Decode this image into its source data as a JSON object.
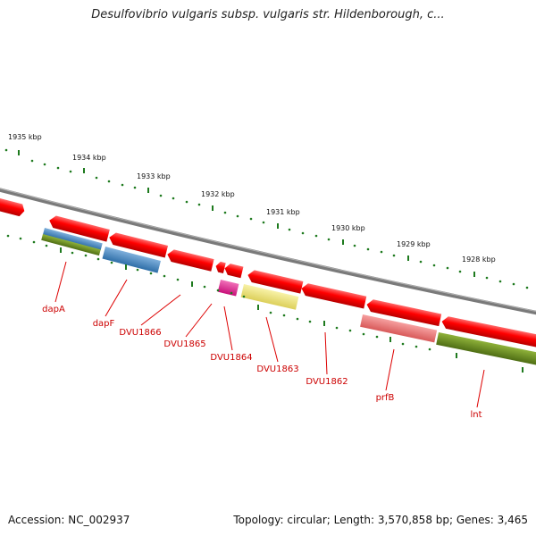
{
  "title": "Desulfovibrio vulgaris subsp. vulgaris str. Hildenborough, c...",
  "footer": {
    "accession": "Accession: NC_002937",
    "topology": "Topology: circular; Length: 3,570,858 bp; Genes: 3,465"
  },
  "ruler": {
    "labels": [
      "1935 kbp",
      "1934 kbp",
      "1933 kbp",
      "1932 kbp",
      "1931 kbp",
      "1930 kbp",
      "1929 kbp",
      "1928 kbp"
    ],
    "tick_color": "#1e7a1e"
  },
  "genes": [
    {
      "label": "dapA"
    },
    {
      "label": "dapF"
    },
    {
      "label": "DVU1866"
    },
    {
      "label": "DVU1865"
    },
    {
      "label": "DVU1864"
    },
    {
      "label": "DVU1863"
    },
    {
      "label": "DVU1862"
    },
    {
      "label": "prfB"
    },
    {
      "label": "lnt"
    }
  ],
  "colors": {
    "backbone": "#808080",
    "cds": "#ee1111",
    "label": "#cc0000",
    "blue": "#4a86c0",
    "olive": "#6a8e22",
    "magenta": "#e0208c",
    "yellow": "#ece27a",
    "salmon": "#ee7070"
  }
}
